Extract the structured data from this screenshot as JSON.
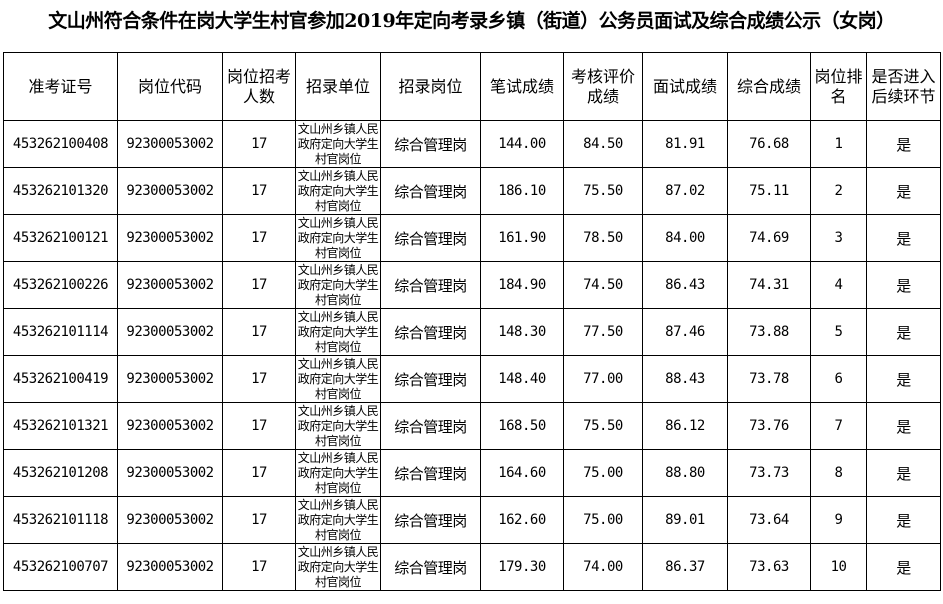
{
  "title": "文山州符合条件在岗大学生村官参加2019年定向考录乡镇（街道）公务员面试及综合成绩公示（女岗）",
  "headers": [
    "准考证号",
    "岗位代码",
    "岗位招考人数",
    "招录单位",
    "招录岗位",
    "笔试成绩",
    "考核评价成绩",
    "面试成绩",
    "综合成绩",
    "岗位排名",
    "是否进入后续环节"
  ],
  "rows": [
    [
      "453262100408",
      "92300053002",
      "17",
      "文山州乡镇人民政府定向大学生村官岗位",
      "综合管理岗",
      "144.00",
      "84.50",
      "81.91",
      "76.68",
      "1",
      "是"
    ],
    [
      "453262101320",
      "92300053002",
      "17",
      "文山州乡镇人民政府定向大学生村官岗位",
      "综合管理岗",
      "186.10",
      "75.50",
      "87.02",
      "75.11",
      "2",
      "是"
    ],
    [
      "453262100121",
      "92300053002",
      "17",
      "文山州乡镇人民政府定向大学生村官岗位",
      "综合管理岗",
      "161.90",
      "78.50",
      "84.00",
      "74.69",
      "3",
      "是"
    ],
    [
      "453262100226",
      "92300053002",
      "17",
      "文山州乡镇人民政府定向大学生村官岗位",
      "综合管理岗",
      "184.90",
      "74.50",
      "86.43",
      "74.31",
      "4",
      "是"
    ],
    [
      "453262101114",
      "92300053002",
      "17",
      "文山州乡镇人民政府定向大学生村官岗位",
      "综合管理岗",
      "148.30",
      "77.50",
      "87.46",
      "73.88",
      "5",
      "是"
    ],
    [
      "453262100419",
      "92300053002",
      "17",
      "文山州乡镇人民政府定向大学生村官岗位",
      "综合管理岗",
      "148.40",
      "77.00",
      "88.43",
      "73.78",
      "6",
      "是"
    ],
    [
      "453262101321",
      "92300053002",
      "17",
      "文山州乡镇人民政府定向大学生村官岗位",
      "综合管理岗",
      "168.50",
      "75.50",
      "86.12",
      "73.76",
      "7",
      "是"
    ],
    [
      "453262101208",
      "92300053002",
      "17",
      "文山州乡镇人民政府定向大学生村官岗位",
      "综合管理岗",
      "164.60",
      "75.00",
      "88.80",
      "73.73",
      "8",
      "是"
    ],
    [
      "453262101118",
      "92300053002",
      "17",
      "文山州乡镇人民政府定向大学生村官岗位",
      "综合管理岗",
      "162.60",
      "75.00",
      "89.01",
      "73.64",
      "9",
      "是"
    ],
    [
      "453262100707",
      "92300053002",
      "17",
      "文山州乡镇人民政府定向大学生村官岗位",
      "综合管理岗",
      "179.30",
      "74.00",
      "86.37",
      "73.63",
      "10",
      "是"
    ]
  ]
}
